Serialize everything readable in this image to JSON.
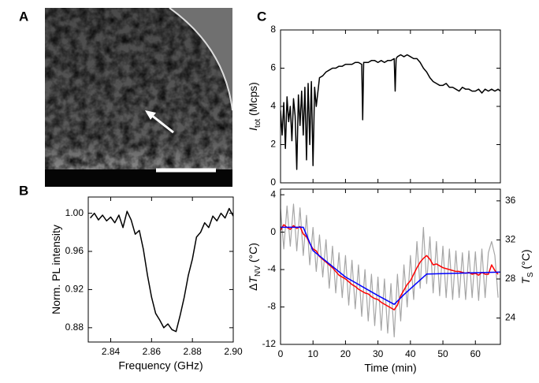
{
  "image_panel": {
    "panel": "A"
  },
  "chart_data": [
    {
      "type": "line",
      "panel": "B",
      "xlabel": "Frequency (GHz)",
      "ylabel": {
        "text": "Norm. PL intensity"
      },
      "x": [
        2.83,
        2.832,
        2.834,
        2.836,
        2.838,
        2.84,
        2.842,
        2.844,
        2.846,
        2.848,
        2.85,
        2.852,
        2.854,
        2.856,
        2.858,
        2.86,
        2.862,
        2.864,
        2.866,
        2.868,
        2.87,
        2.872,
        2.874,
        2.876,
        2.878,
        2.88,
        2.882,
        2.884,
        2.886,
        2.888,
        2.89,
        2.892,
        2.894,
        2.896,
        2.898,
        2.9
      ],
      "series": [
        {
          "color": "#000000",
          "values": [
            0.995,
            1.0,
            0.993,
            0.998,
            0.992,
            0.996,
            0.99,
            0.998,
            0.985,
            1.002,
            0.993,
            0.978,
            0.982,
            0.962,
            0.935,
            0.912,
            0.895,
            0.888,
            0.88,
            0.884,
            0.878,
            0.876,
            0.893,
            0.912,
            0.935,
            0.952,
            0.975,
            0.98,
            0.99,
            0.985,
            0.997,
            0.992,
            1.0,
            0.995,
            1.005,
            0.997
          ]
        }
      ],
      "xlim": [
        2.829,
        2.9
      ],
      "ylim": [
        0.865,
        1.017
      ],
      "xticks": [
        2.84,
        2.86,
        2.88,
        {
          "value": 2.9,
          "label": "2.90"
        }
      ],
      "yticks": [
        0.88,
        0.92,
        0.96,
        {
          "value": 1.0,
          "label": "1.00"
        }
      ]
    },
    {
      "type": "line",
      "panel": "C",
      "ylabel": {
        "symbol": "I",
        "sub": "tot",
        "unit": " (Mcps)"
      },
      "show_xtick_labels": false,
      "x": [
        0,
        0.5,
        1,
        1.5,
        2,
        2.5,
        3,
        3.5,
        4,
        4.5,
        5,
        5.5,
        6,
        6.5,
        7,
        7.5,
        8,
        8.5,
        9,
        9.5,
        10,
        10.5,
        11,
        12,
        13,
        14,
        15,
        16,
        17,
        18,
        19,
        20,
        21,
        22,
        23,
        24,
        25,
        25.3,
        25.6,
        27,
        28,
        29,
        30,
        31,
        32,
        33,
        34,
        35,
        35.3,
        35.6,
        36,
        37,
        38,
        39,
        40,
        41,
        42,
        43,
        44,
        45,
        46,
        47,
        48,
        49,
        50,
        51,
        52,
        53,
        54,
        55,
        56,
        57,
        58,
        59,
        60,
        61,
        62,
        63,
        64,
        65,
        66,
        67,
        67.7
      ],
      "series": [
        {
          "color": "#000000",
          "values": [
            3.8,
            2.5,
            4.2,
            1.8,
            4.5,
            3.2,
            4.0,
            2.2,
            4.4,
            3.5,
            0.7,
            4.6,
            3.0,
            4.8,
            2.5,
            5.0,
            1.2,
            5.2,
            2.0,
            5.3,
            0.9,
            5.0,
            4.0,
            5.5,
            5.6,
            5.8,
            5.9,
            6.0,
            6.0,
            6.1,
            6.1,
            6.2,
            6.2,
            6.2,
            6.3,
            6.3,
            6.2,
            3.3,
            6.3,
            6.3,
            6.4,
            6.4,
            6.3,
            6.4,
            6.3,
            6.4,
            6.4,
            6.5,
            4.8,
            6.5,
            6.6,
            6.7,
            6.6,
            6.7,
            6.6,
            6.5,
            6.5,
            6.3,
            6.0,
            5.8,
            5.5,
            5.3,
            5.2,
            5.1,
            5.1,
            5.2,
            5.0,
            5.0,
            4.9,
            4.8,
            5.0,
            4.9,
            4.9,
            4.8,
            4.8,
            4.9,
            4.7,
            4.9,
            4.8,
            4.9,
            4.8,
            4.9,
            4.8
          ]
        }
      ],
      "xlim": [
        0,
        67.7
      ],
      "ylim": [
        0,
        8
      ],
      "xticks": [
        0,
        10,
        20,
        30,
        40,
        50,
        60
      ],
      "yticks": [
        0,
        2,
        4,
        6,
        8
      ]
    },
    {
      "type": "line",
      "xlabel": "Time (min)",
      "ylabel": {
        "prefix": "Δ",
        "symbol": "T",
        "sub": "NV",
        "unit": " (°C)"
      },
      "y2label": {
        "symbol": "T",
        "sub": "S",
        "unit": " (°C)"
      },
      "x": [
        0,
        1,
        2,
        3,
        4,
        5,
        6,
        7,
        8,
        9,
        10,
        11,
        12,
        13,
        14,
        15,
        16,
        17,
        18,
        19,
        20,
        21,
        22,
        23,
        24,
        25,
        26,
        27,
        28,
        29,
        30,
        31,
        32,
        33,
        34,
        35,
        36,
        37,
        38,
        39,
        40,
        41,
        42,
        43,
        44,
        45,
        46,
        47,
        48,
        49,
        50,
        51,
        52,
        53,
        54,
        55,
        56,
        57,
        58,
        59,
        60,
        61,
        62,
        63,
        64,
        65,
        66,
        67
      ],
      "series": [
        {
          "color": "#a6a6a6",
          "values": [
            2.5,
            -1.8,
            2.8,
            -1.5,
            3.0,
            -2.0,
            2.6,
            -2.5,
            1.8,
            -3.5,
            0.5,
            -4.2,
            -0.3,
            -4.8,
            -0.8,
            -6.0,
            -1.5,
            -6.5,
            -2.2,
            -7.0,
            -2.5,
            -7.8,
            -3.0,
            -8.2,
            -3.5,
            -9.0,
            -4.0,
            -9.5,
            -4.5,
            -10.0,
            -4.8,
            -10.5,
            -5.0,
            -10.8,
            -5.5,
            -11.2,
            -4.5,
            -9.5,
            -3.5,
            -8.0,
            -2.5,
            -7.2,
            -1.0,
            -6.0,
            0.5,
            -5.5,
            -0.5,
            -6.5,
            -1.0,
            -6.8,
            -1.5,
            -7.0,
            -1.8,
            -7.2,
            -2.0,
            -7.0,
            -2.2,
            -7.2,
            -2.0,
            -7.0,
            -2.1,
            -7.3,
            -1.8,
            -7.0,
            -2.2,
            -1.0,
            -2.5,
            -7.0
          ]
        },
        {
          "color": "#ff0000",
          "values": [
            0.2,
            0.8,
            0.5,
            0.3,
            0.7,
            0.4,
            0.6,
            -0.2,
            -0.5,
            -1.2,
            -1.8,
            -2.0,
            -2.6,
            -2.9,
            -3.2,
            -3.5,
            -3.8,
            -4.2,
            -4.6,
            -4.8,
            -5.0,
            -5.3,
            -5.6,
            -5.8,
            -6.1,
            -6.3,
            -6.5,
            -6.6,
            -6.9,
            -7.1,
            -7.2,
            -7.5,
            -7.7,
            -7.9,
            -8.1,
            -8.3,
            -7.8,
            -6.8,
            -6.2,
            -5.6,
            -5.2,
            -4.5,
            -3.8,
            -3.2,
            -2.8,
            -2.5,
            -2.9,
            -3.5,
            -3.4,
            -3.6,
            -3.8,
            -3.9,
            -4.0,
            -4.1,
            -4.2,
            -4.2,
            -4.3,
            -4.4,
            -4.3,
            -4.5,
            -4.4,
            -4.6,
            -4.3,
            -4.5,
            -4.5,
            -3.5,
            -4.1,
            -4.5
          ]
        },
        {
          "color": "#0000ff",
          "axis": "y2",
          "x": [
            0,
            7,
            10,
            20,
            30,
            35,
            38,
            45,
            67.7
          ],
          "values": [
            33.3,
            33.3,
            30.9,
            28.2,
            26.3,
            25.4,
            26.4,
            28.5,
            28.7
          ]
        }
      ],
      "xlim": [
        0,
        67.7
      ],
      "ylim": [
        -12,
        4.6
      ],
      "y2lim": [
        21.3,
        37.2
      ],
      "xticks": [
        0,
        10,
        20,
        30,
        40,
        50,
        60
      ],
      "yticks": [
        -12,
        -8,
        -4,
        0,
        4
      ],
      "y2ticks": [
        24,
        28,
        32,
        36
      ]
    }
  ]
}
